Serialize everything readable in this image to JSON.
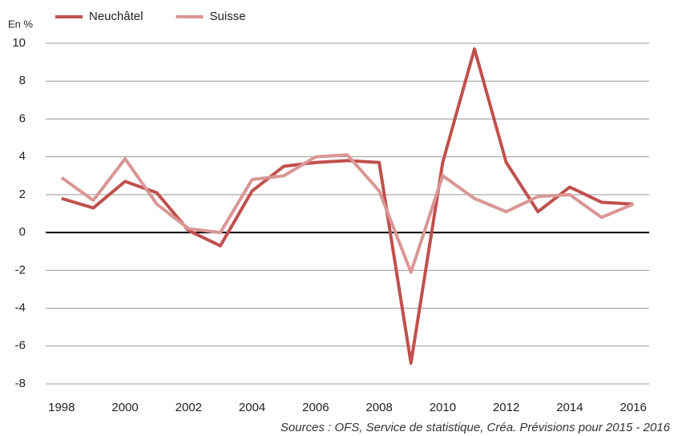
{
  "chart_data": {
    "type": "line",
    "y_label": "En %",
    "source": "Sources : OFS, Service de statistique, Créa. Prévisions pour 2015 - 2016",
    "x": [
      1998,
      1999,
      2000,
      2001,
      2002,
      2003,
      2004,
      2005,
      2006,
      2007,
      2008,
      2009,
      2010,
      2011,
      2012,
      2013,
      2014,
      2015,
      2016
    ],
    "xlim": [
      1997.5,
      2016.5
    ],
    "xticks": [
      1998,
      2000,
      2002,
      2004,
      2006,
      2008,
      2010,
      2012,
      2014,
      2016
    ],
    "ylim": [
      -8,
      10
    ],
    "yticks": [
      -8,
      -6,
      -4,
      -2,
      0,
      2,
      4,
      6,
      8,
      10
    ],
    "grid": true,
    "legend": "top",
    "series": [
      {
        "name": "Neuchâtel",
        "color": "#c0504d",
        "values": [
          1.8,
          1.3,
          2.7,
          2.1,
          0.1,
          -0.7,
          2.2,
          3.5,
          3.7,
          3.8,
          3.7,
          -6.9,
          3.7,
          9.7,
          3.7,
          1.1,
          2.4,
          1.6,
          1.5
        ]
      },
      {
        "name": "Suisse",
        "color": "#d99694",
        "values": [
          2.9,
          1.7,
          3.9,
          1.5,
          0.2,
          0.0,
          2.8,
          3.0,
          4.0,
          4.1,
          2.2,
          -2.1,
          3.0,
          1.8,
          1.1,
          1.9,
          2.0,
          0.8,
          1.5
        ]
      }
    ]
  }
}
